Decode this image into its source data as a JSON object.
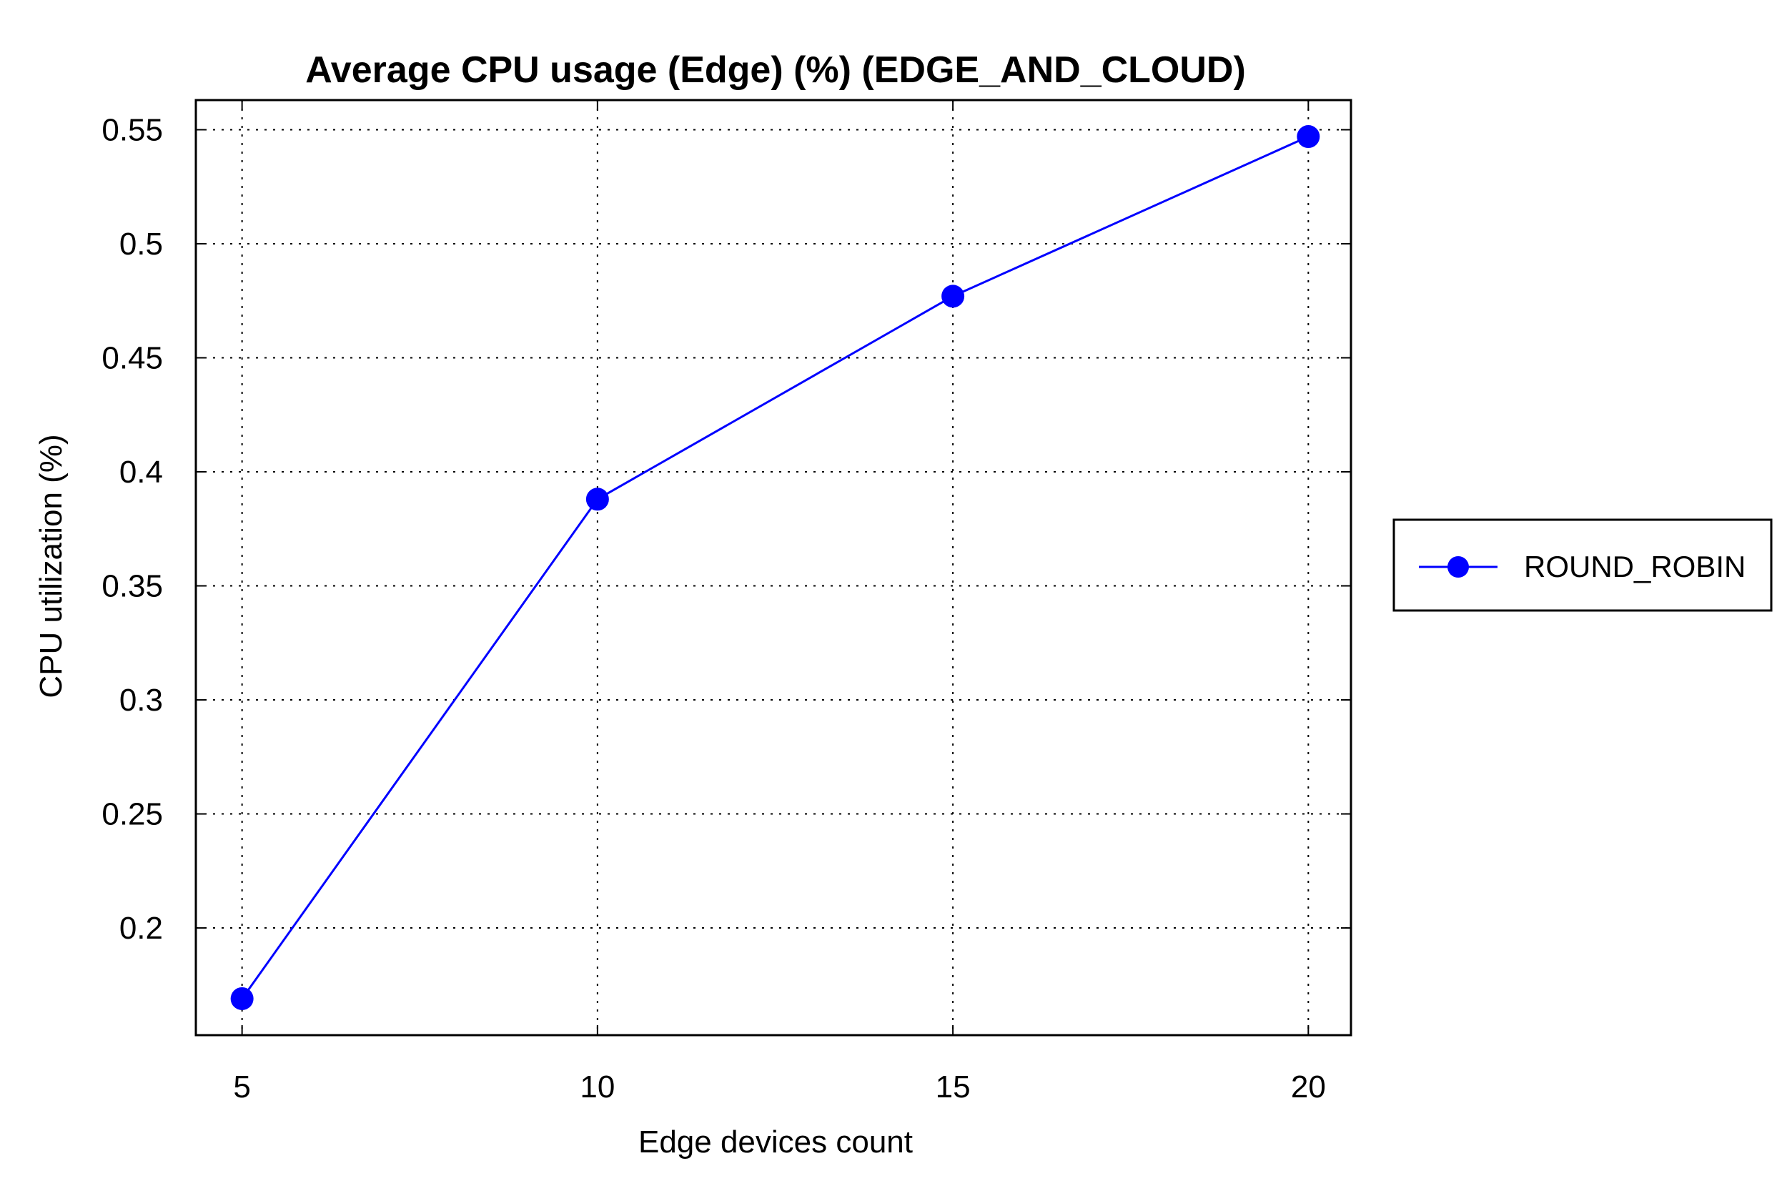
{
  "chart_data": {
    "type": "line",
    "title": "Average CPU usage (Edge) (%) (EDGE_AND_CLOUD)",
    "xlabel": "Edge devices count",
    "ylabel": "CPU utilization (%)",
    "x": [
      5,
      10,
      15,
      20
    ],
    "x_ticks": [
      "5",
      "10",
      "15",
      "20"
    ],
    "y_ticks": [
      "0.2",
      "0.25",
      "0.3",
      "0.35",
      "0.4",
      "0.45",
      "0.5",
      "0.55"
    ],
    "xlim": [
      4.35,
      20.6
    ],
    "ylim": [
      0.153,
      0.563
    ],
    "grid": true,
    "legend_position": "right",
    "series": [
      {
        "name": "ROUND_ROBIN",
        "color": "#0000ff",
        "marker": "circle",
        "values": [
          0.169,
          0.388,
          0.477,
          0.547
        ]
      }
    ]
  }
}
